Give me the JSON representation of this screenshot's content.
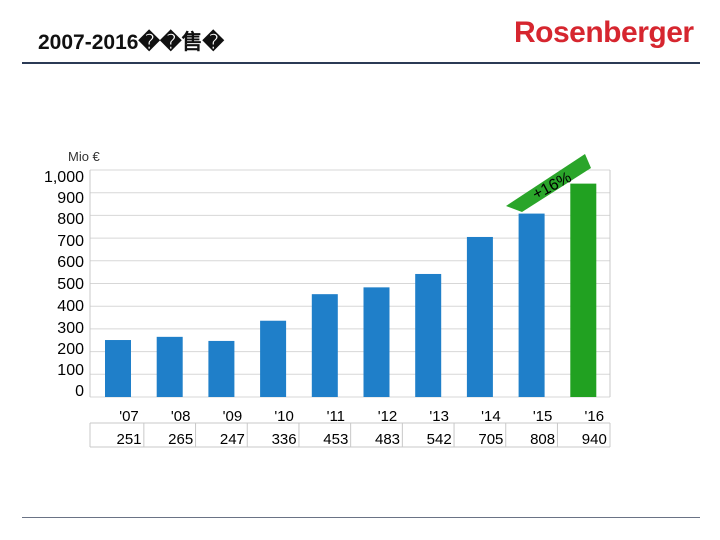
{
  "header": {
    "title": "2007-2016��售�",
    "brand": "Rosenberger",
    "brand_color": "#d6262f",
    "rule_color": "#2b3a55"
  },
  "chart_data": {
    "type": "bar",
    "unit_label": "Mio €",
    "categories": [
      "'07",
      "'08",
      "'09",
      "'10",
      "'11",
      "'12",
      "'13",
      "'14",
      "'15",
      "'16"
    ],
    "values": [
      251,
      265,
      247,
      336,
      453,
      483,
      542,
      705,
      808,
      940
    ],
    "value_labels": [
      "251",
      "265",
      "247",
      "336",
      "453",
      "483",
      "542",
      "705",
      "808",
      "940"
    ],
    "ylim": [
      0,
      1000
    ],
    "yticks": [
      "1,000",
      "900",
      "800",
      "700",
      "600",
      "500",
      "400",
      "300",
      "200",
      "100",
      "0"
    ],
    "grid": true,
    "bar_color": "#1f7fc9",
    "highlight_index": 9,
    "highlight_color": "#21a121",
    "annotation": "+16%"
  }
}
